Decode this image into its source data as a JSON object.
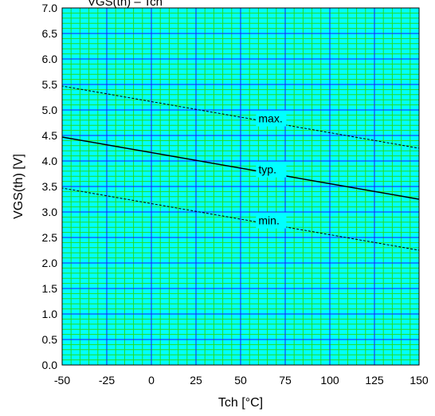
{
  "chart_data": {
    "type": "line",
    "title_fragment": "VGS(th) – Tch",
    "xlabel": "Tch [°C]",
    "ylabel": "VGS(th) [V]",
    "xlim": [
      -50,
      150
    ],
    "ylim": [
      0.0,
      7.0
    ],
    "x_ticks": [
      "-50",
      "-25",
      "0",
      "25",
      "50",
      "75",
      "100",
      "125",
      "150"
    ],
    "y_ticks": [
      "0.0",
      "0.5",
      "1.0",
      "1.5",
      "2.0",
      "2.5",
      "3.0",
      "3.5",
      "4.0",
      "4.5",
      "5.0",
      "5.5",
      "6.0",
      "6.5",
      "7.0"
    ],
    "grid": true,
    "colors": {
      "background": "#00ffff",
      "minor_grid": "#22dd22",
      "major_grid": "#1a1aff",
      "line": "#000000"
    },
    "series": [
      {
        "name": "max.",
        "style": "dashed",
        "x": [
          -55,
          150
        ],
        "y": [
          5.5,
          4.25
        ]
      },
      {
        "name": "typ.",
        "style": "solid",
        "x": [
          -55,
          150
        ],
        "y": [
          4.5,
          3.25
        ]
      },
      {
        "name": "min.",
        "style": "dashed",
        "x": [
          -55,
          150
        ],
        "y": [
          3.5,
          2.25
        ]
      }
    ]
  }
}
